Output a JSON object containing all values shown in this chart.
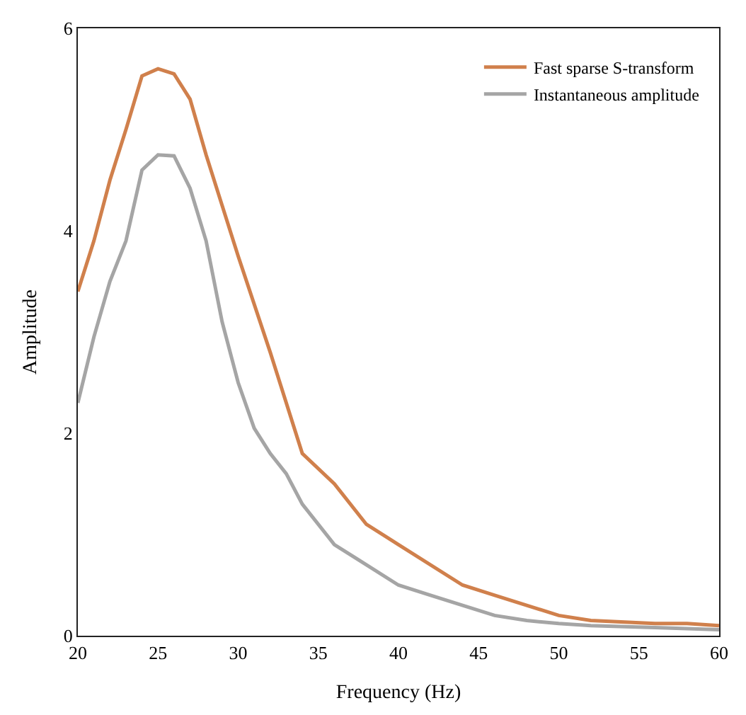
{
  "chart_data": {
    "type": "line",
    "xlabel": "Frequency (Hz)",
    "ylabel": "Amplitude",
    "xlim": [
      20,
      60
    ],
    "xticks": [
      20,
      25,
      30,
      35,
      40,
      45,
      50,
      55,
      60
    ],
    "ylim": [
      0,
      6
    ],
    "yticks": [
      0,
      2,
      4,
      6
    ],
    "legend": "top right",
    "marker": "none",
    "line_style": "solid",
    "series": [
      {
        "name": "Fast sparse S-transform",
        "color": "#d0804c",
        "x": [
          20,
          21,
          22,
          23,
          24,
          25,
          26,
          27,
          28,
          29,
          30,
          32,
          34,
          36,
          38,
          40,
          44,
          46,
          50,
          52,
          56,
          58,
          60
        ],
        "values": [
          3.4,
          3.9,
          4.5,
          5.0,
          5.53,
          5.6,
          5.55,
          5.3,
          4.75,
          4.25,
          3.75,
          2.8,
          1.8,
          1.5,
          1.1,
          0.9,
          0.5,
          0.4,
          0.2,
          0.15,
          0.12,
          0.12,
          0.1
        ]
      },
      {
        "name": "Instantaneous amplitude",
        "color": "#a5a5a5",
        "x": [
          20,
          21,
          22,
          23,
          24,
          25,
          26,
          27,
          28,
          29,
          30,
          31,
          32,
          33,
          34,
          36,
          38,
          40,
          42,
          44,
          46,
          48,
          50,
          52,
          56,
          60
        ],
        "values": [
          2.3,
          2.95,
          3.5,
          3.9,
          4.6,
          4.75,
          4.74,
          4.42,
          3.9,
          3.1,
          2.5,
          2.05,
          1.8,
          1.6,
          1.3,
          0.9,
          0.7,
          0.5,
          0.4,
          0.3,
          0.2,
          0.15,
          0.12,
          0.1,
          0.08,
          0.06
        ]
      }
    ]
  }
}
